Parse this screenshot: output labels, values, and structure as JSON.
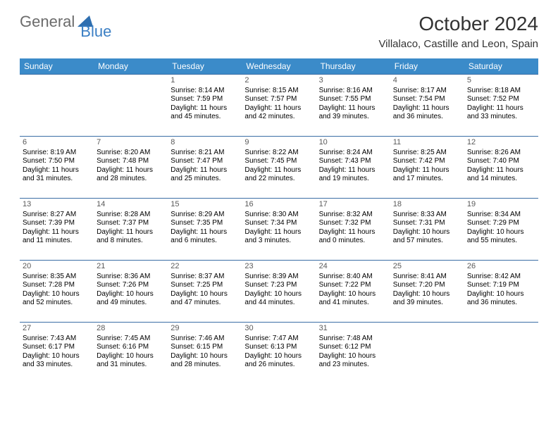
{
  "logo": {
    "general": "General",
    "blue": "Blue"
  },
  "title": "October 2024",
  "location": "Villalaco, Castille and Leon, Spain",
  "header_bg": "#3b8bc9",
  "header_fg": "#ffffff",
  "rule_color": "#3b6ea5",
  "daynum_color": "#5a5a5a",
  "text_color": "#000000",
  "logo_gray": "#6b6b6b",
  "logo_blue": "#3b7fc4",
  "days": [
    "Sunday",
    "Monday",
    "Tuesday",
    "Wednesday",
    "Thursday",
    "Friday",
    "Saturday"
  ],
  "weeks": [
    [
      null,
      null,
      {
        "n": "1",
        "sr": "8:14 AM",
        "ss": "7:59 PM",
        "dl": "11 hours and 45 minutes."
      },
      {
        "n": "2",
        "sr": "8:15 AM",
        "ss": "7:57 PM",
        "dl": "11 hours and 42 minutes."
      },
      {
        "n": "3",
        "sr": "8:16 AM",
        "ss": "7:55 PM",
        "dl": "11 hours and 39 minutes."
      },
      {
        "n": "4",
        "sr": "8:17 AM",
        "ss": "7:54 PM",
        "dl": "11 hours and 36 minutes."
      },
      {
        "n": "5",
        "sr": "8:18 AM",
        "ss": "7:52 PM",
        "dl": "11 hours and 33 minutes."
      }
    ],
    [
      {
        "n": "6",
        "sr": "8:19 AM",
        "ss": "7:50 PM",
        "dl": "11 hours and 31 minutes."
      },
      {
        "n": "7",
        "sr": "8:20 AM",
        "ss": "7:48 PM",
        "dl": "11 hours and 28 minutes."
      },
      {
        "n": "8",
        "sr": "8:21 AM",
        "ss": "7:47 PM",
        "dl": "11 hours and 25 minutes."
      },
      {
        "n": "9",
        "sr": "8:22 AM",
        "ss": "7:45 PM",
        "dl": "11 hours and 22 minutes."
      },
      {
        "n": "10",
        "sr": "8:24 AM",
        "ss": "7:43 PM",
        "dl": "11 hours and 19 minutes."
      },
      {
        "n": "11",
        "sr": "8:25 AM",
        "ss": "7:42 PM",
        "dl": "11 hours and 17 minutes."
      },
      {
        "n": "12",
        "sr": "8:26 AM",
        "ss": "7:40 PM",
        "dl": "11 hours and 14 minutes."
      }
    ],
    [
      {
        "n": "13",
        "sr": "8:27 AM",
        "ss": "7:39 PM",
        "dl": "11 hours and 11 minutes."
      },
      {
        "n": "14",
        "sr": "8:28 AM",
        "ss": "7:37 PM",
        "dl": "11 hours and 8 minutes."
      },
      {
        "n": "15",
        "sr": "8:29 AM",
        "ss": "7:35 PM",
        "dl": "11 hours and 6 minutes."
      },
      {
        "n": "16",
        "sr": "8:30 AM",
        "ss": "7:34 PM",
        "dl": "11 hours and 3 minutes."
      },
      {
        "n": "17",
        "sr": "8:32 AM",
        "ss": "7:32 PM",
        "dl": "11 hours and 0 minutes."
      },
      {
        "n": "18",
        "sr": "8:33 AM",
        "ss": "7:31 PM",
        "dl": "10 hours and 57 minutes."
      },
      {
        "n": "19",
        "sr": "8:34 AM",
        "ss": "7:29 PM",
        "dl": "10 hours and 55 minutes."
      }
    ],
    [
      {
        "n": "20",
        "sr": "8:35 AM",
        "ss": "7:28 PM",
        "dl": "10 hours and 52 minutes."
      },
      {
        "n": "21",
        "sr": "8:36 AM",
        "ss": "7:26 PM",
        "dl": "10 hours and 49 minutes."
      },
      {
        "n": "22",
        "sr": "8:37 AM",
        "ss": "7:25 PM",
        "dl": "10 hours and 47 minutes."
      },
      {
        "n": "23",
        "sr": "8:39 AM",
        "ss": "7:23 PM",
        "dl": "10 hours and 44 minutes."
      },
      {
        "n": "24",
        "sr": "8:40 AM",
        "ss": "7:22 PM",
        "dl": "10 hours and 41 minutes."
      },
      {
        "n": "25",
        "sr": "8:41 AM",
        "ss": "7:20 PM",
        "dl": "10 hours and 39 minutes."
      },
      {
        "n": "26",
        "sr": "8:42 AM",
        "ss": "7:19 PM",
        "dl": "10 hours and 36 minutes."
      }
    ],
    [
      {
        "n": "27",
        "sr": "7:43 AM",
        "ss": "6:17 PM",
        "dl": "10 hours and 33 minutes."
      },
      {
        "n": "28",
        "sr": "7:45 AM",
        "ss": "6:16 PM",
        "dl": "10 hours and 31 minutes."
      },
      {
        "n": "29",
        "sr": "7:46 AM",
        "ss": "6:15 PM",
        "dl": "10 hours and 28 minutes."
      },
      {
        "n": "30",
        "sr": "7:47 AM",
        "ss": "6:13 PM",
        "dl": "10 hours and 26 minutes."
      },
      {
        "n": "31",
        "sr": "7:48 AM",
        "ss": "6:12 PM",
        "dl": "10 hours and 23 minutes."
      },
      null,
      null
    ]
  ],
  "labels": {
    "sunrise": "Sunrise:",
    "sunset": "Sunset:",
    "daylight": "Daylight:"
  }
}
